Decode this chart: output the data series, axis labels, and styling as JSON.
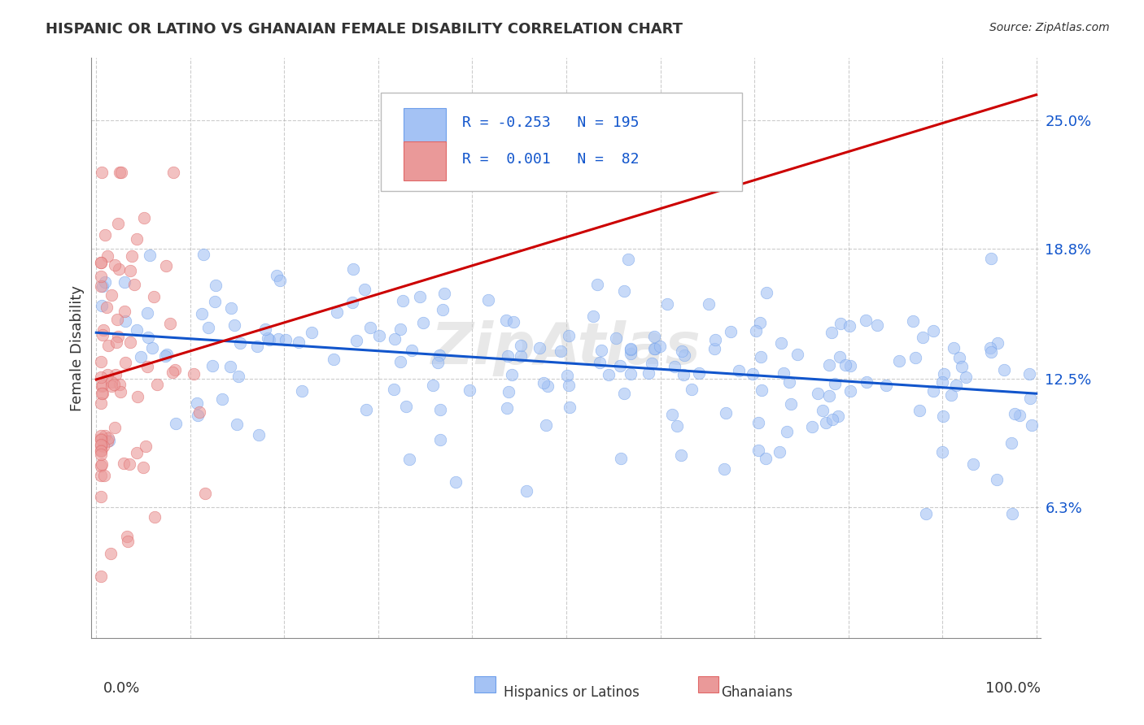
{
  "title": "HISPANIC OR LATINO VS GHANAIAN FEMALE DISABILITY CORRELATION CHART",
  "source": "Source: ZipAtlas.com",
  "ylabel": "Female Disability",
  "ytick_values": [
    0.063,
    0.125,
    0.188,
    0.25
  ],
  "ytick_labels": [
    "6.3%",
    "12.5%",
    "18.8%",
    "25.0%"
  ],
  "legend_r_blue": "-0.253",
  "legend_n_blue": "195",
  "legend_r_pink": "0.001",
  "legend_n_pink": "82",
  "blue_color": "#a4c2f4",
  "blue_edge_color": "#6d9eeb",
  "pink_color": "#ea9999",
  "pink_edge_color": "#e06666",
  "trend_blue_color": "#1155cc",
  "trend_pink_color": "#cc0000",
  "grid_color": "#aaaaaa",
  "background_color": "#ffffff",
  "text_color": "#1155cc",
  "title_color": "#333333",
  "watermark_color": "#cccccc",
  "n_blue": 195,
  "n_pink": 82,
  "seed": 1234,
  "xlim": [
    0.0,
    1.0
  ],
  "ylim_low": 0.0,
  "ylim_high": 0.28,
  "scatter_size": 110,
  "scatter_alpha": 0.6
}
